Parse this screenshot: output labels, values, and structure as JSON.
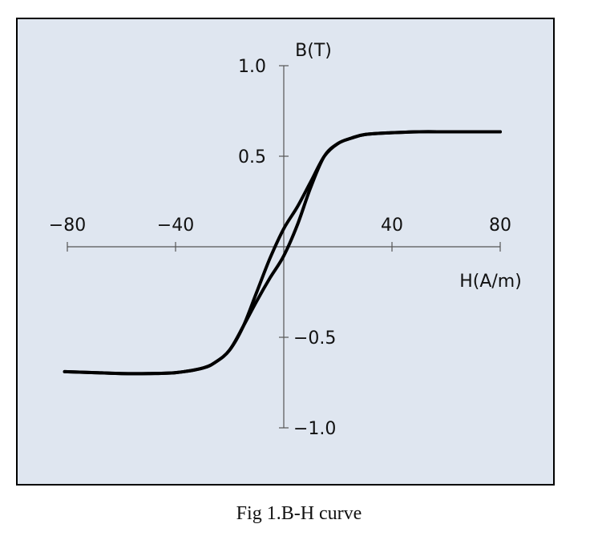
{
  "caption": "Fig 1.B-H curve",
  "chart_data": {
    "type": "line",
    "title": "",
    "xlabel": "H(A/m)",
    "ylabel": "B(T)",
    "xlim": [
      -80,
      80
    ],
    "ylim": [
      -1.0,
      1.0
    ],
    "grid": false,
    "background_color": "#dfe6f0",
    "line_color": "#000000",
    "x_ticks": [
      {
        "value": -80,
        "label": "−80"
      },
      {
        "value": -40,
        "label": "−40"
      },
      {
        "value": 40,
        "label": "40"
      },
      {
        "value": 80,
        "label": "80"
      }
    ],
    "y_ticks": [
      {
        "value": 1.0,
        "label": "1.0"
      },
      {
        "value": 0.5,
        "label": "0.5"
      },
      {
        "value": -0.5,
        "label": "−0.5"
      },
      {
        "value": -1.0,
        "label": "−1.0"
      }
    ],
    "series": [
      {
        "name": "",
        "x": [
          -81,
          -70,
          -60,
          -50,
          -40,
          -30,
          -25,
          -20,
          -15,
          -10,
          -5,
          0,
          5,
          10,
          15,
          20,
          25,
          30,
          40,
          50,
          60,
          70,
          80
        ],
        "y": [
          -0.69,
          -0.695,
          -0.7,
          -0.7,
          -0.695,
          -0.67,
          -0.635,
          -0.57,
          -0.44,
          -0.3,
          -0.17,
          -0.05,
          0.12,
          0.33,
          0.5,
          0.57,
          0.6,
          0.62,
          0.63,
          0.635,
          0.635,
          0.635,
          0.635
        ]
      },
      {
        "name": "",
        "x": [
          -81,
          -70,
          -60,
          -50,
          -40,
          -30,
          -25,
          -20,
          -15,
          -10,
          -5,
          0,
          5,
          10,
          15,
          20,
          25,
          30,
          40,
          50,
          60,
          70,
          80
        ],
        "y": [
          -0.69,
          -0.695,
          -0.7,
          -0.7,
          -0.695,
          -0.67,
          -0.635,
          -0.57,
          -0.44,
          -0.25,
          -0.06,
          0.1,
          0.22,
          0.36,
          0.5,
          0.57,
          0.6,
          0.62,
          0.63,
          0.635,
          0.635,
          0.635,
          0.635
        ]
      }
    ]
  }
}
